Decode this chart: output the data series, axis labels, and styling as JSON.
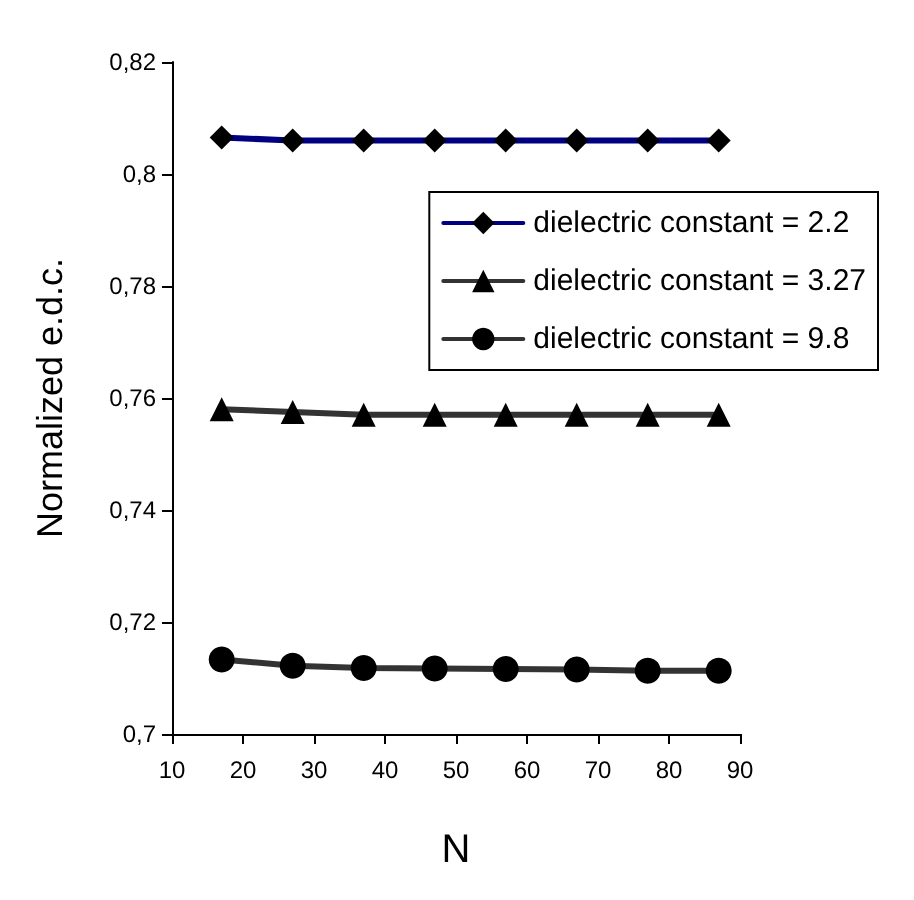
{
  "chart_data": {
    "type": "line",
    "xlabel": "N",
    "ylabel": "Normalized e.d.c.",
    "x": [
      17,
      27,
      37,
      47,
      57,
      67,
      77,
      87
    ],
    "series": [
      {
        "name": "dielectric constant = 2.2",
        "color": "#000080",
        "marker": "diamond",
        "values": [
          0.8065,
          0.806,
          0.806,
          0.806,
          0.806,
          0.806,
          0.806,
          0.806
        ]
      },
      {
        "name": "dielectric constant = 3.27",
        "color": "#333333",
        "marker": "triangle",
        "values": [
          0.758,
          0.7575,
          0.757,
          0.757,
          0.757,
          0.757,
          0.757,
          0.757
        ]
      },
      {
        "name": "dielectric constant = 9.8",
        "color": "#333333",
        "marker": "circle",
        "values": [
          0.7133,
          0.7122,
          0.7118,
          0.7117,
          0.7116,
          0.7115,
          0.7113,
          0.7113
        ]
      }
    ],
    "xlim": [
      10,
      90
    ],
    "xticks": [
      10,
      20,
      30,
      40,
      50,
      60,
      70,
      80,
      90
    ],
    "ylim": [
      0.7,
      0.82
    ],
    "yticks": [
      {
        "value": 0.7,
        "label": "0,7"
      },
      {
        "value": 0.72,
        "label": "0,72"
      },
      {
        "value": 0.74,
        "label": "0,74"
      },
      {
        "value": 0.76,
        "label": "0,76"
      },
      {
        "value": 0.78,
        "label": "0,78"
      },
      {
        "value": 0.8,
        "label": "0,8"
      },
      {
        "value": 0.82,
        "label": "0,82"
      }
    ],
    "grid": false,
    "legend": "top right",
    "line_style": "solid"
  }
}
